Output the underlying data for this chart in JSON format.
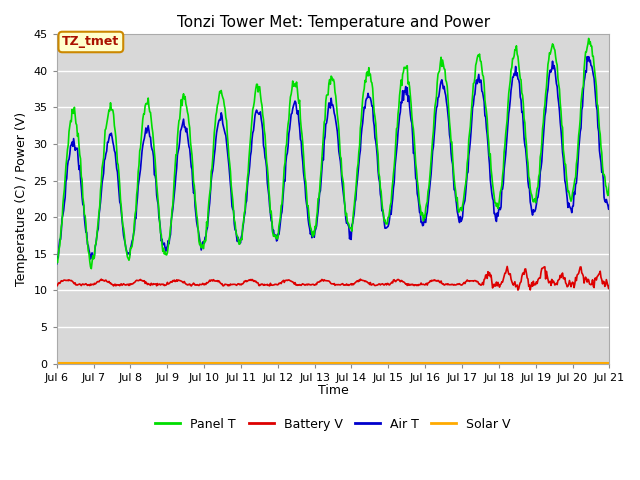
{
  "title": "Tonzi Tower Met: Temperature and Power",
  "ylabel": "Temperature (C) / Power (V)",
  "xlabel": "Time",
  "annotation_text": "TZ_tmet",
  "annotation_color": "#aa1100",
  "annotation_bg": "#ffffcc",
  "annotation_edge": "#cc8800",
  "ylim": [
    0,
    45
  ],
  "yticks": [
    0,
    5,
    10,
    15,
    20,
    25,
    30,
    35,
    40,
    45
  ],
  "xtick_labels": [
    "Jul 6",
    "Jul 7",
    "Jul 8",
    "Jul 9",
    "Jul 10",
    "Jul 11",
    "Jul 12",
    "Jul 13",
    "Jul 14",
    "Jul 15",
    "Jul 16",
    "Jul 17",
    "Jul 18",
    "Jul 19",
    "Jul 20",
    "Jul 21"
  ],
  "panel_color": "#00dd00",
  "battery_color": "#dd0000",
  "air_color": "#0000cc",
  "solar_color": "#ffaa00",
  "plot_bg_color": "#d8d8d8",
  "white_line_color": "#ffffff",
  "legend_labels": [
    "Panel T",
    "Battery V",
    "Air T",
    "Solar V"
  ],
  "n_days": 15,
  "points_per_day": 48
}
